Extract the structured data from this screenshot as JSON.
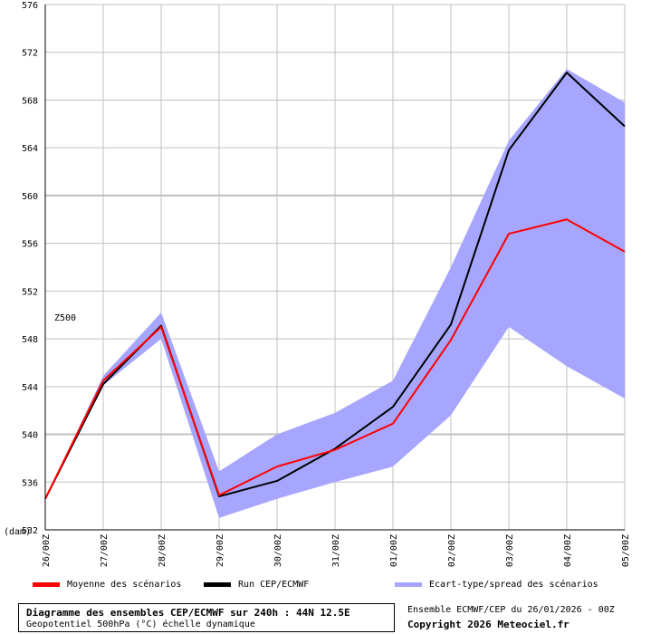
{
  "chart_data": {
    "type": "line",
    "x": [
      "26/00Z",
      "27/00Z",
      "28/00Z",
      "29/00Z",
      "30/00Z",
      "31/00Z",
      "01/00Z",
      "02/00Z",
      "03/00Z",
      "04/00Z",
      "05/00Z"
    ],
    "ylim": [
      532,
      576
    ],
    "yticks": [
      532,
      536,
      540,
      544,
      548,
      552,
      556,
      560,
      564,
      568,
      572,
      576
    ],
    "y_unit_label": "(dam)",
    "variable_label": "Z500",
    "grid": true,
    "series": [
      {
        "name": "Moyenne des scénarios",
        "color": "#ff0000",
        "values": [
          534.6,
          544.5,
          549.0,
          534.9,
          537.3,
          538.7,
          540.9,
          547.9,
          556.8,
          558.0,
          555.3
        ]
      },
      {
        "name": "Run CEP/ECMWF",
        "color": "#000000",
        "values": [
          534.6,
          544.2,
          549.1,
          534.8,
          536.1,
          538.8,
          542.3,
          549.2,
          563.8,
          570.3,
          565.8
        ]
      }
    ],
    "band": {
      "name": "Ecart-type/spread des scénarios",
      "color": "#a6a6ff",
      "upper": [
        534.6,
        544.9,
        550.2,
        536.9,
        540.0,
        541.8,
        544.5,
        554.0,
        564.6,
        570.6,
        567.8
      ],
      "lower": [
        534.6,
        544.1,
        548.0,
        533.0,
        534.6,
        536.0,
        537.3,
        541.6,
        549.0,
        545.7,
        543.0
      ]
    }
  },
  "legend": {
    "mean_label": "Moyenne des scénarios",
    "run_label": "Run CEP/ECMWF",
    "spread_label": "Ecart-type/spread des scénarios"
  },
  "title": {
    "line1": "Diagramme des ensembles CEP/ECMWF sur 240h : 44N 12.5E",
    "line2": "Geopotentiel 500hPa (°C) échelle dynamique"
  },
  "footer": {
    "info": "Ensemble ECMWF/CEP du 26/01/2026 - 00Z",
    "copyright": "Copyright 2026 Meteociel.fr"
  },
  "colors": {
    "mean": "#ff0000",
    "run": "#000000",
    "spread": "#a6a6ff",
    "grid": "#c0c0c0"
  }
}
